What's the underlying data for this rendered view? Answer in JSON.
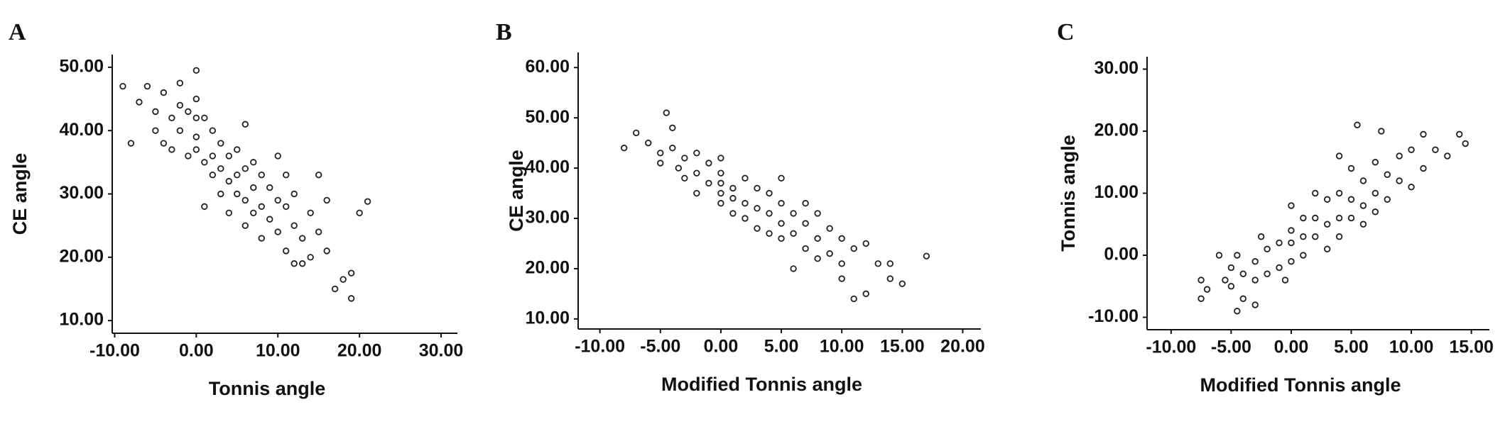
{
  "chart_data": [
    {
      "panel": "A",
      "type": "scatter",
      "x_label": "Tonnis angle",
      "y_label": "CE angle",
      "color": "#222222",
      "xlim": [
        -10.3,
        32
      ],
      "ylim": [
        8,
        52
      ],
      "xticks": [
        {
          "value": -10,
          "label": "-10.00"
        },
        {
          "value": 0,
          "label": "0.00"
        },
        {
          "value": 10,
          "label": "10.00"
        },
        {
          "value": 20,
          "label": "20.00"
        },
        {
          "value": 30,
          "label": "30.00"
        }
      ],
      "yticks": [
        {
          "value": 10,
          "label": "10.00"
        },
        {
          "value": 20,
          "label": "20.00"
        },
        {
          "value": 30,
          "label": "30.00"
        },
        {
          "value": 40,
          "label": "40.00"
        },
        {
          "value": 50,
          "label": "50.00"
        }
      ],
      "x": [
        -9,
        -8,
        -7,
        -6,
        -5,
        -5,
        -4,
        -4,
        -3,
        -3,
        -2,
        -2,
        -2,
        -1,
        -1,
        0,
        0,
        0,
        0,
        0,
        1,
        1,
        1,
        2,
        2,
        2,
        3,
        3,
        3,
        4,
        4,
        4,
        5,
        5,
        5,
        6,
        6,
        6,
        6,
        7,
        7,
        7,
        8,
        8,
        8,
        9,
        9,
        10,
        10,
        10,
        11,
        11,
        12,
        12,
        13,
        13,
        14,
        14,
        15,
        15,
        16,
        16,
        17,
        18,
        19,
        19,
        20,
        21,
        11,
        12
      ],
      "values": [
        47,
        38,
        44.5,
        47,
        43,
        40,
        46,
        38,
        42,
        37,
        47.5,
        44,
        40,
        43,
        36,
        49.5,
        45,
        42,
        39,
        37,
        42,
        35,
        28,
        40,
        36,
        33,
        38,
        34,
        30,
        36,
        32,
        27,
        37,
        33,
        30,
        41,
        34,
        29,
        25,
        35,
        31,
        27,
        33,
        28,
        23,
        31,
        26,
        36,
        29,
        24,
        28,
        21,
        30,
        25,
        23,
        19,
        27,
        20,
        33,
        24,
        21,
        29,
        15,
        16.5,
        13.5,
        17.5,
        27,
        28.8,
        33,
        19
      ]
    },
    {
      "panel": "B",
      "type": "scatter",
      "x_label": "Modified Tonnis angle",
      "y_label": "CE angle",
      "color": "#222222",
      "xlim": [
        -11.8,
        21.5
      ],
      "ylim": [
        8,
        63
      ],
      "xticks": [
        {
          "value": -10,
          "label": "-10.00"
        },
        {
          "value": -5,
          "label": "-5.00"
        },
        {
          "value": 0,
          "label": "0.00"
        },
        {
          "value": 5,
          "label": "5.00"
        },
        {
          "value": 10,
          "label": "10.00"
        },
        {
          "value": 15,
          "label": "15.00"
        },
        {
          "value": 20,
          "label": "20.00"
        }
      ],
      "yticks": [
        {
          "value": 10,
          "label": "10.00"
        },
        {
          "value": 20,
          "label": "20.00"
        },
        {
          "value": 30,
          "label": "30.00"
        },
        {
          "value": 40,
          "label": "40.00"
        },
        {
          "value": 50,
          "label": "50.00"
        },
        {
          "value": 60,
          "label": "60.00"
        }
      ],
      "x": [
        -8,
        -7,
        -6,
        -5,
        -5,
        -4.5,
        -4,
        -4,
        -3.5,
        -3,
        -3,
        -2,
        -2,
        -2,
        -1,
        -1,
        0,
        0,
        0,
        0,
        0,
        1,
        1,
        1,
        2,
        2,
        2,
        3,
        3,
        3,
        4,
        4,
        4,
        5,
        5,
        5,
        5,
        6,
        6,
        6,
        7,
        7,
        7,
        8,
        8,
        8,
        9,
        9,
        10,
        10,
        10,
        11,
        11,
        12,
        12,
        13,
        14,
        14,
        15,
        17
      ],
      "values": [
        44,
        47,
        45,
        43,
        41,
        51,
        48,
        44,
        40,
        42,
        38,
        43,
        39,
        35,
        41,
        37,
        42,
        39,
        37,
        35,
        33,
        36,
        34,
        31,
        38,
        33,
        30,
        36,
        32,
        28,
        35,
        31,
        27,
        38,
        33,
        29,
        26,
        31,
        27,
        20,
        33,
        29,
        24,
        31,
        26,
        22,
        28,
        23,
        26,
        21,
        18,
        24,
        14,
        15,
        25,
        21,
        21,
        18,
        17,
        22.5
      ]
    },
    {
      "panel": "C",
      "type": "scatter",
      "x_label": "Modified Tonnis angle",
      "y_label": "Tonnis angle",
      "color": "#222222",
      "xlim": [
        -12,
        16.5
      ],
      "ylim": [
        -12,
        32
      ],
      "xticks": [
        {
          "value": -10,
          "label": "-10.00"
        },
        {
          "value": -5,
          "label": "-5.00"
        },
        {
          "value": 0,
          "label": "0.00"
        },
        {
          "value": 5,
          "label": "5.00"
        },
        {
          "value": 10,
          "label": "10.00"
        },
        {
          "value": 15,
          "label": "15.00"
        }
      ],
      "yticks": [
        {
          "value": -10,
          "label": "-10.00"
        },
        {
          "value": 0,
          "label": "0.00"
        },
        {
          "value": 10,
          "label": "10.00"
        },
        {
          "value": 20,
          "label": "20.00"
        },
        {
          "value": 30,
          "label": "30.00"
        }
      ],
      "x": [
        -7.5,
        -7.5,
        -7,
        -6,
        -5.5,
        -5,
        -5,
        -4.5,
        -4.5,
        -4,
        -4,
        -3,
        -3,
        -3,
        -2.5,
        -2,
        -2,
        -1,
        -1,
        -0.5,
        0,
        0,
        0,
        0,
        1,
        1,
        1,
        2,
        2,
        2,
        3,
        3,
        3,
        4,
        4,
        4,
        4,
        5,
        5,
        5,
        5.5,
        6,
        6,
        6,
        7,
        7,
        7,
        7.5,
        8,
        8,
        9,
        9,
        10,
        10,
        11,
        11,
        12,
        13,
        14,
        14.5
      ],
      "values": [
        -4,
        -7,
        -5.5,
        0,
        -4,
        -2,
        -5,
        0,
        -9,
        -3,
        -7,
        -1,
        -4,
        -8,
        3,
        1,
        -3,
        2,
        -2,
        -4,
        8,
        4,
        2,
        -1,
        6,
        3,
        0,
        10,
        6,
        3,
        9,
        5,
        1,
        16,
        10,
        6,
        3,
        14,
        9,
        6,
        21,
        12,
        8,
        5,
        15,
        10,
        7,
        20,
        13,
        9,
        12,
        16,
        17,
        11,
        19.5,
        14,
        17,
        16,
        19.5,
        18
      ]
    }
  ]
}
